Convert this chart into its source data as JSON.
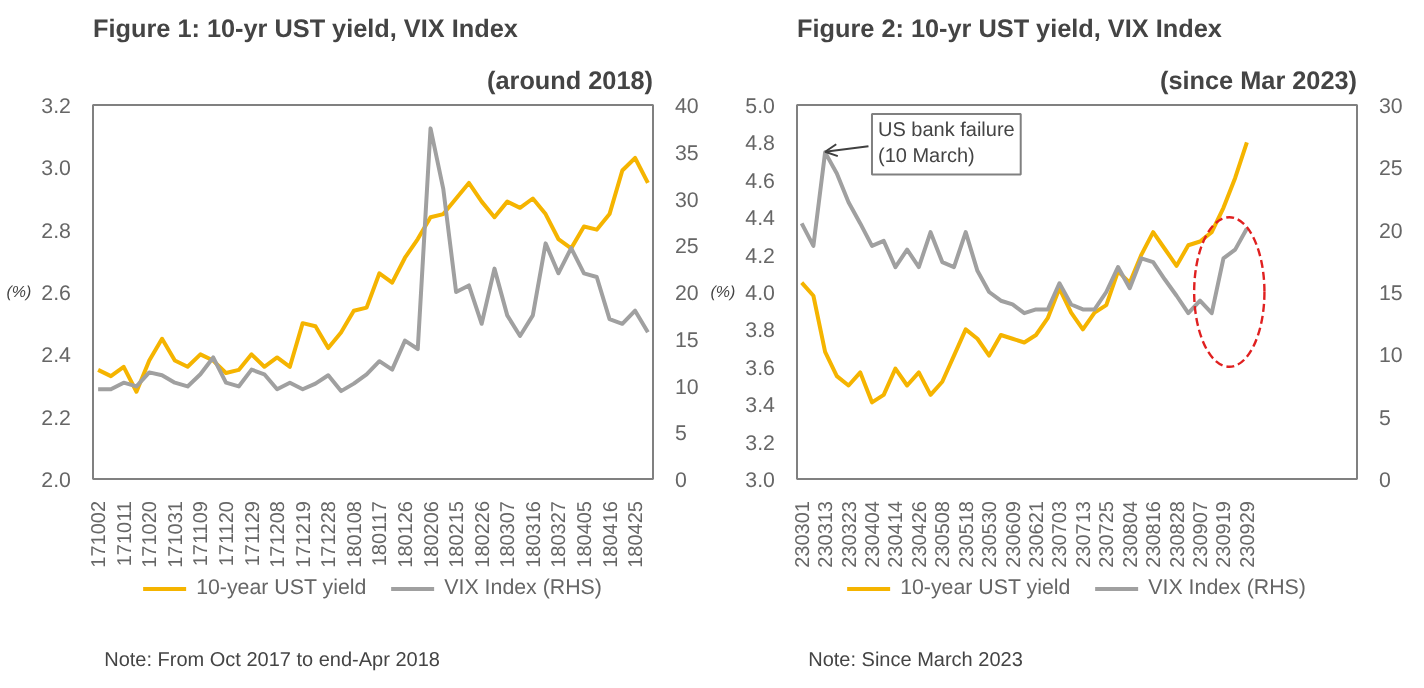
{
  "chart_data": [
    {
      "type": "line",
      "title": "Figure 1: 10-yr UST yield, VIX Index",
      "subtitle": "(around 2018)",
      "ylabel": "(%)",
      "categories": [
        "171002",
        null,
        "171011",
        null,
        "171020",
        null,
        "171031",
        null,
        "171109",
        null,
        "171120",
        null,
        "171129",
        null,
        "171208",
        null,
        "171219",
        null,
        "171228",
        null,
        "180108",
        null,
        "180117",
        null,
        "180126",
        null,
        "180206",
        null,
        "180215",
        null,
        "180226",
        null,
        "180307",
        null,
        "180316",
        null,
        "180327",
        null,
        "180405",
        null,
        "180416",
        null,
        "180425",
        null
      ],
      "series": [
        {
          "name": "10-year UST yield",
          "color": "#f5b400",
          "values": [
            2.35,
            2.33,
            2.36,
            2.28,
            2.38,
            2.45,
            2.38,
            2.36,
            2.4,
            2.38,
            2.34,
            2.35,
            2.4,
            2.36,
            2.39,
            2.36,
            2.5,
            2.49,
            2.42,
            2.47,
            2.54,
            2.55,
            2.66,
            2.63,
            2.71,
            2.77,
            2.84,
            2.85,
            2.9,
            2.95,
            2.89,
            2.84,
            2.89,
            2.87,
            2.9,
            2.85,
            2.77,
            2.74,
            2.81,
            2.8,
            2.85,
            2.99,
            3.03,
            2.95
          ]
        },
        {
          "name": "VIX Index (RHS)",
          "color": "#a0a0a0",
          "axis": "y2",
          "values": [
            9.6,
            9.6,
            10.3,
            9.9,
            11.4,
            11.1,
            10.3,
            9.9,
            11.2,
            13.0,
            10.3,
            9.9,
            11.7,
            11.2,
            9.6,
            10.3,
            9.6,
            10.2,
            11.1,
            9.4,
            10.2,
            11.2,
            12.6,
            11.7,
            14.8,
            13.9,
            37.5,
            31,
            20,
            20.7,
            16.6,
            22.5,
            17.5,
            15.3,
            17.5,
            25.2,
            22.0,
            24.7,
            22.0,
            21.6,
            17.1,
            16.6,
            18.0,
            15.7
          ]
        }
      ],
      "ylim": [
        2.0,
        3.2
      ],
      "yticks": [
        {
          "value": 2.0,
          "label": "2.0"
        },
        {
          "value": 2.2,
          "label": "2.2"
        },
        {
          "value": 2.4,
          "label": "2.4"
        },
        {
          "value": 2.6,
          "label": "2.6"
        },
        {
          "value": 2.8,
          "label": "2.8"
        },
        {
          "value": 3.0,
          "label": "3.0"
        },
        {
          "value": 3.2,
          "label": "3.2"
        }
      ],
      "y2lim": [
        0,
        40
      ],
      "y2ticks": [
        0,
        5,
        10,
        15,
        20,
        25,
        30,
        35,
        40
      ],
      "legend": "bottom",
      "grid": false,
      "annotations": [
        "Note: From Oct 2017 to end-Apr 2018"
      ]
    },
    {
      "type": "line",
      "title": "Figure 2: 10-yr UST yield, VIX Index",
      "subtitle": "(since Mar 2023)",
      "ylabel": "(%)",
      "categories": [
        "230301",
        null,
        "230313",
        null,
        "230323",
        null,
        "230404",
        null,
        "230414",
        null,
        "230426",
        null,
        "230508",
        null,
        "230518",
        null,
        "230530",
        null,
        "230609",
        null,
        "230621",
        null,
        "230703",
        null,
        "230713",
        null,
        "230725",
        null,
        "230804",
        null,
        "230816",
        null,
        "230828",
        null,
        "230907",
        null,
        "230919",
        null,
        "230929",
        null,
        null,
        null,
        null,
        null,
        null,
        null,
        null,
        null
      ],
      "series": [
        {
          "name": "10-year UST yield",
          "color": "#f5b400",
          "values": [
            4.05,
            3.98,
            3.68,
            3.55,
            3.5,
            3.57,
            3.41,
            3.45,
            3.59,
            3.5,
            3.57,
            3.45,
            3.52,
            3.66,
            3.8,
            3.75,
            3.66,
            3.77,
            3.75,
            3.73,
            3.77,
            3.86,
            4.02,
            3.89,
            3.8,
            3.89,
            3.93,
            4.11,
            4.05,
            4.2,
            4.32,
            4.23,
            4.14,
            4.25,
            4.27,
            4.32,
            4.45,
            4.61,
            4.8,
            null,
            null,
            null,
            null,
            null,
            null,
            null,
            null,
            null
          ]
        },
        {
          "name": "VIX Index (RHS)",
          "color": "#a0a0a0",
          "axis": "y2",
          "values": [
            20.5,
            18.7,
            26.2,
            24.5,
            22.2,
            20.5,
            18.7,
            19.1,
            17.0,
            18.4,
            17.0,
            19.8,
            17.4,
            17.0,
            19.8,
            16.7,
            15.0,
            14.3,
            14.0,
            13.3,
            13.6,
            13.6,
            15.7,
            14.0,
            13.6,
            13.6,
            15.0,
            17.0,
            15.3,
            17.7,
            17.4,
            16.0,
            14.7,
            13.3,
            14.3,
            13.3,
            17.7,
            18.4,
            20.1,
            null,
            null,
            null,
            null,
            null,
            null,
            null,
            null,
            null
          ]
        }
      ],
      "ylim": [
        3.0,
        5.0
      ],
      "yticks": [
        {
          "value": 3.0,
          "label": "3.0"
        },
        {
          "value": 3.2,
          "label": "3.2"
        },
        {
          "value": 3.4,
          "label": "3.4"
        },
        {
          "value": 3.6,
          "label": "3.6"
        },
        {
          "value": 3.8,
          "label": "3.8"
        },
        {
          "value": 4.0,
          "label": "4.0"
        },
        {
          "value": 4.2,
          "label": "4.2"
        },
        {
          "value": 4.4,
          "label": "4.4"
        },
        {
          "value": 4.6,
          "label": "4.6"
        },
        {
          "value": 4.8,
          "label": "4.8"
        },
        {
          "value": 5.0,
          "label": "5.0"
        }
      ],
      "y2lim": [
        0,
        30
      ],
      "y2ticks": [
        0,
        5,
        10,
        15,
        20,
        25,
        30
      ],
      "legend": "bottom",
      "grid": false,
      "annotations": [
        {
          "text": "US bank failure\n(10 March)",
          "x": "230313",
          "y": 4.75
        },
        "Note: Since March 2023"
      ]
    }
  ]
}
